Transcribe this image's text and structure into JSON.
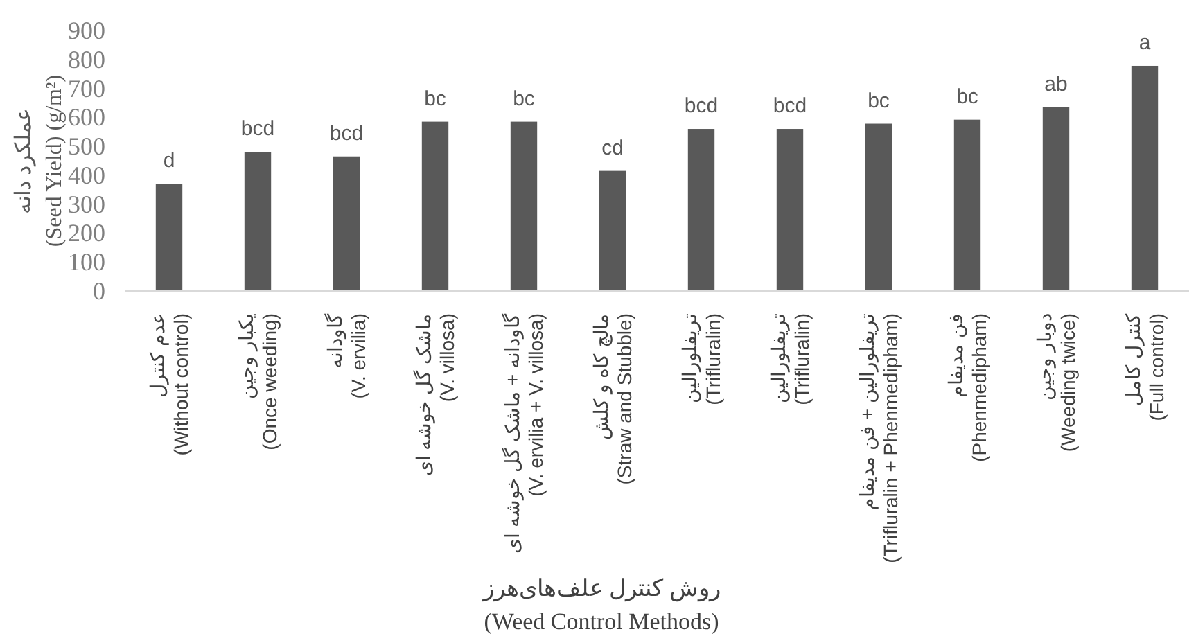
{
  "chart_data": {
    "type": "bar",
    "ylabel": "عملکرد دانه\n(Seed Yield) (g/m²)",
    "xlabel": "روش کنترل علف‌های‌هرز\n(Weed Control Methods)",
    "categories": [
      "عدم کنترل\n(Without control)",
      "یکبار وجین\n(Once weeding)",
      "گاودانه\n(V. ervilia)",
      "ماشک گل خوشه ای\n(V. villosa)",
      "گاودانه + ماشک گل خوشه ای\n(V. ervilia + V. villosa)",
      "مالچ کاه و کلش\n(Straw and Stubble)",
      "تریفلورالین\n(Trifluralin)",
      "تریفلورالین\n(Trifluralin)",
      "تریفلورالین + فن مدیفام\n(Trifluralin + Phenmedipham)",
      "فن مدیفام\n(Phenmedipham)",
      "دوبار وجین\n(Weeding twice)",
      "کنترل کامل\n(Full control)"
    ],
    "values": [
      370,
      480,
      465,
      585,
      585,
      415,
      560,
      560,
      578,
      592,
      635,
      778
    ],
    "value_labels": [
      "d",
      "bcd",
      "bcd",
      "bc",
      "bc",
      "cd",
      "bcd",
      "bcd",
      "bc",
      "bc",
      "ab",
      "a"
    ],
    "color": "#595959",
    "ylim": [
      0,
      900
    ],
    "yticks": [
      0,
      100,
      200,
      300,
      400,
      500,
      600,
      700,
      800,
      900
    ]
  }
}
